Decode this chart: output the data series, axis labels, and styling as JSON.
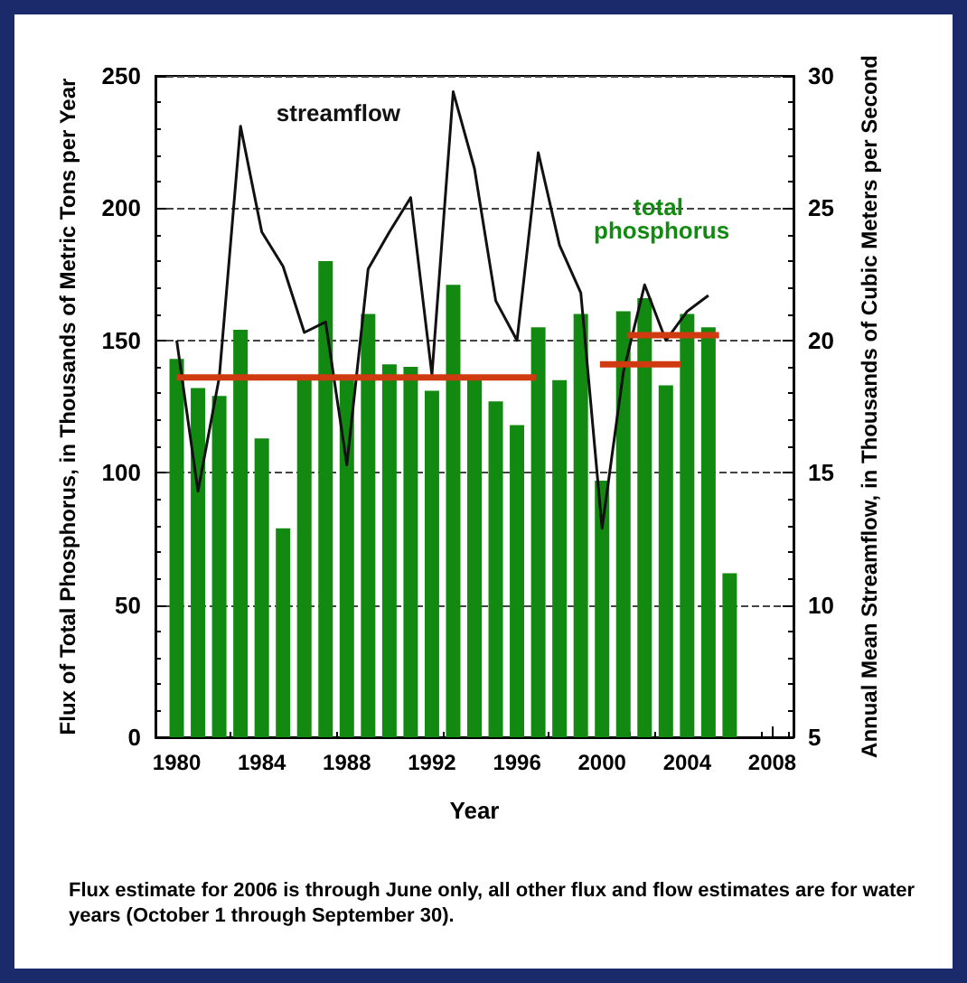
{
  "chart_data": {
    "type": "bar",
    "x": [
      1980,
      1981,
      1982,
      1983,
      1984,
      1985,
      1986,
      1987,
      1988,
      1989,
      1990,
      1991,
      1992,
      1993,
      1994,
      1995,
      1996,
      1997,
      1998,
      1999,
      2000,
      2001,
      2002,
      2003,
      2004,
      2005,
      2006
    ],
    "series": [
      {
        "name": "total phosphorus",
        "color": "#128a12",
        "values": [
          143,
          132,
          129,
          154,
          113,
          79,
          136,
          180,
          135,
          160,
          141,
          140,
          131,
          171,
          135,
          127,
          118,
          155,
          135,
          160,
          97,
          161,
          166,
          133,
          160,
          155,
          62
        ]
      },
      {
        "name": "streamflow",
        "type": "line",
        "axis": "y2",
        "color": "#111111",
        "values": [
          20.0,
          14.3,
          18.6,
          28.1,
          24.1,
          22.8,
          20.3,
          20.7,
          15.3,
          22.7,
          24.1,
          25.4,
          18.7,
          29.4,
          26.5,
          21.5,
          20.0,
          27.1,
          23.6,
          21.8,
          12.9,
          18.8,
          22.1,
          20.0,
          21.1,
          21.7,
          null
        ]
      },
      {
        "type": "line",
        "color": "#d03a10",
        "x": [
          1980,
          1996.9
        ],
        "values": [
          136,
          136
        ]
      },
      {
        "type": "line",
        "color": "#d03a10",
        "x": [
          1999.9,
          2003.7
        ],
        "values": [
          141,
          141
        ]
      },
      {
        "type": "line",
        "color": "#d03a10",
        "x": [
          2001.2,
          2005.5
        ],
        "values": [
          152,
          152
        ]
      }
    ],
    "xlabel": "Year",
    "ylabel": "Flux of Total Phosphorus, in Thousands of Metric Tons per Year",
    "y2label": "Annual Mean Streamflow, in Thousands of Cubic Meters per Second",
    "xlim": [
      1979,
      2009
    ],
    "xticks": [
      1980,
      1984,
      1988,
      1992,
      1996,
      2000,
      2004,
      2008
    ],
    "ylim": [
      0,
      250
    ],
    "yticks": [
      0,
      50,
      100,
      150,
      200,
      250
    ],
    "y2lim": [
      5,
      30
    ],
    "y2ticks": [
      5,
      10,
      15,
      20,
      25,
      30
    ],
    "grid": "y",
    "legend": false,
    "marker": "none",
    "line_style": "solid",
    "annotations": [
      "Flux estimate for 2006 is through June only, all other flux and flow estimates are for water years (October 1 through September 30)."
    ]
  }
}
